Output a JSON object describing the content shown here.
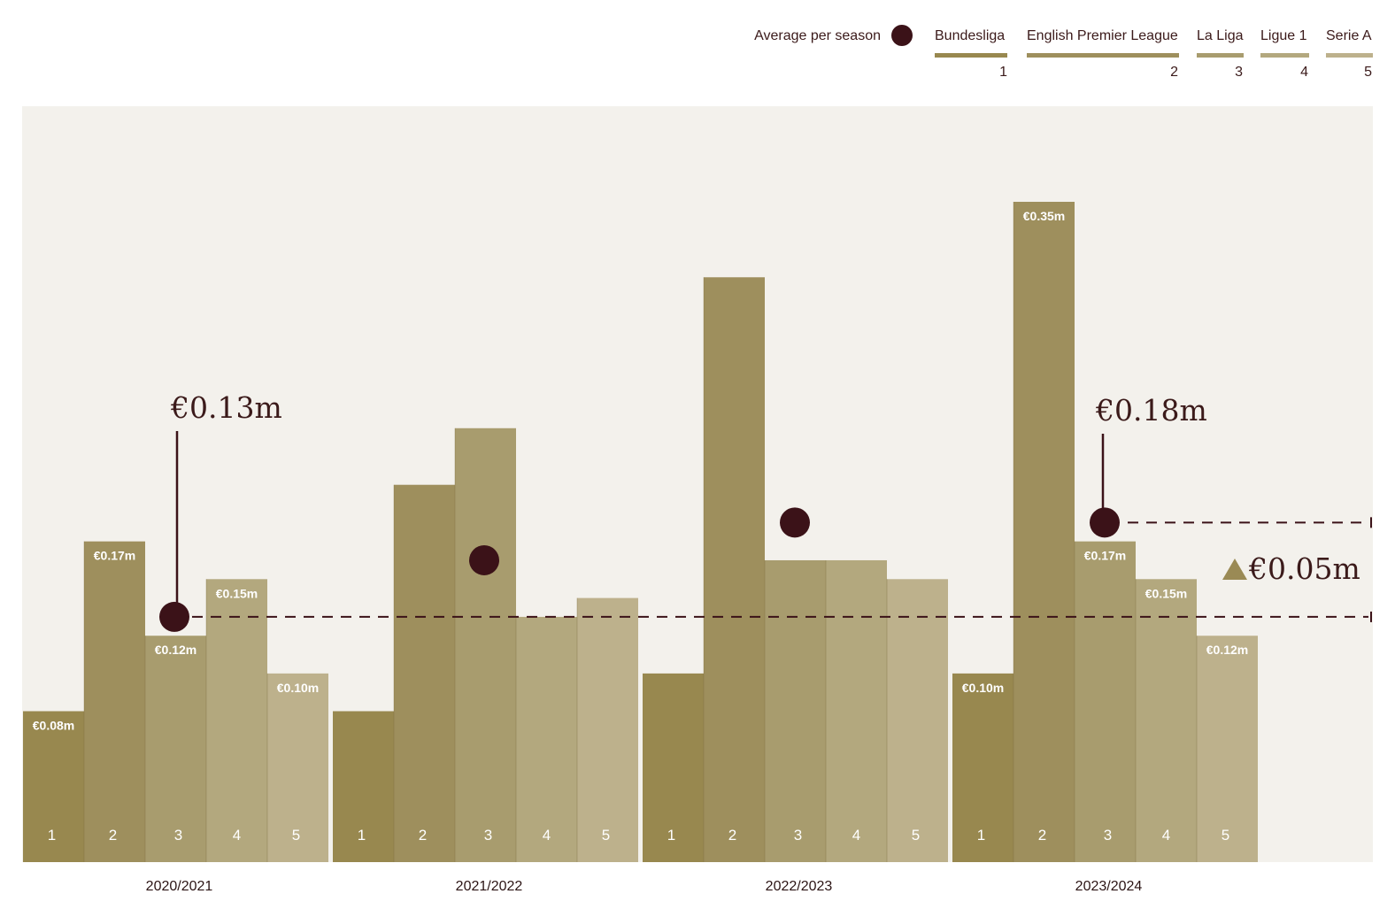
{
  "legend": {
    "average_label": "Average per season",
    "leagues": [
      {
        "name": "Bundesliga",
        "num": "1"
      },
      {
        "name": "English Premier League",
        "num": "2"
      },
      {
        "name": "La Liga",
        "num": "3"
      },
      {
        "name": "Ligue 1",
        "num": "4"
      },
      {
        "name": "Serie A",
        "num": "5"
      }
    ]
  },
  "colors": {
    "background_panel": "#f3f1ec",
    "average_marker": "#3b1218",
    "league_colors": [
      "#98884f",
      "#9e8f5d",
      "#a89c6e",
      "#b3a87e",
      "#bdb18c"
    ]
  },
  "chart_data": {
    "type": "bar",
    "categories": [
      "2020/2021",
      "2021/2022",
      "2022/2023",
      "2023/2024"
    ],
    "series": [
      {
        "name": "Bundesliga",
        "values": [
          0.08,
          0.08,
          0.1,
          0.1
        ]
      },
      {
        "name": "English Premier League",
        "values": [
          0.17,
          0.2,
          0.31,
          0.35
        ]
      },
      {
        "name": "La Liga",
        "values": [
          0.12,
          0.23,
          0.16,
          0.17
        ]
      },
      {
        "name": "Ligue 1",
        "values": [
          0.15,
          0.13,
          0.16,
          0.15
        ]
      },
      {
        "name": "Serie A",
        "values": [
          0.1,
          0.14,
          0.15,
          0.12
        ]
      }
    ],
    "value_labels": [
      [
        "€0.08m",
        "€0.17m",
        "€0.12m",
        "€0.15m",
        "€0.10m"
      ],
      [
        "",
        "",
        "",
        "",
        ""
      ],
      [
        "",
        "",
        "",
        "",
        ""
      ],
      [
        "€0.10m",
        "€0.35m",
        "€0.17m",
        "€0.15m",
        "€0.12m"
      ]
    ],
    "bar_numbers": [
      "1",
      "2",
      "3",
      "4",
      "5"
    ],
    "averages": [
      0.13,
      0.16,
      0.18,
      0.18
    ],
    "ylim": [
      0,
      0.4
    ],
    "annotations": {
      "first_average": "€0.13m",
      "last_average": "€0.18m",
      "change": "€0.05m"
    }
  }
}
